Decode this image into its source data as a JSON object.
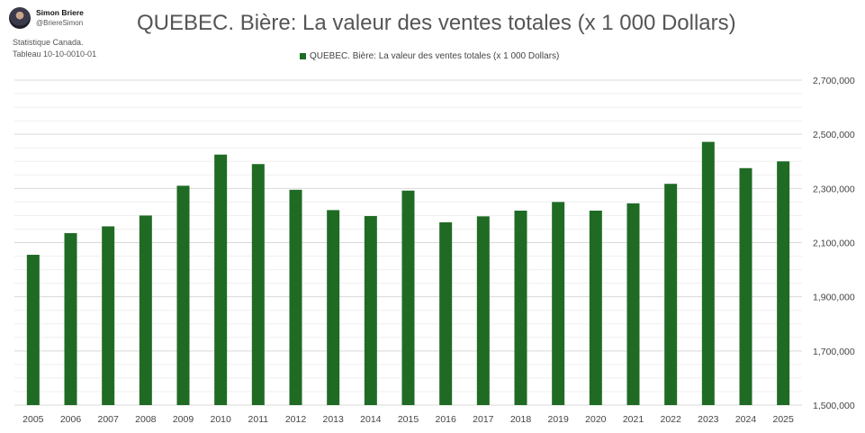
{
  "author": {
    "name": "Simon Briere",
    "handle": "@BriereSimon"
  },
  "source": {
    "line1": "Statistique Canada.",
    "line2": "Tableau 10-10-0010-01"
  },
  "chart_data": {
    "type": "bar",
    "title": "QUEBEC. Bière: La valeur des ventes totales (x 1 000 Dollars)",
    "xlabel": "",
    "ylabel": "",
    "categories": [
      "2005",
      "2006",
      "2007",
      "2008",
      "2009",
      "2010",
      "2011",
      "2012",
      "2013",
      "2014",
      "2015",
      "2016",
      "2017",
      "2018",
      "2019",
      "2020",
      "2021",
      "2022",
      "2023",
      "2024",
      "2025"
    ],
    "series": [
      {
        "name": "QUEBEC. Bière: La valeur des ventes totales (x 1 000 Dollars)",
        "color": "#1f6b24",
        "values": [
          2055000,
          2135000,
          2160000,
          2200000,
          2310000,
          2425000,
          2390000,
          2295000,
          2220000,
          2198000,
          2292000,
          2175000,
          2197000,
          2218000,
          2250000,
          2218000,
          2245000,
          2317000,
          2472000,
          2375000,
          2400000
        ]
      }
    ],
    "ylim": [
      1500000,
      2700000
    ],
    "yticks": [
      1500000,
      1700000,
      1900000,
      2100000,
      2300000,
      2500000,
      2700000
    ],
    "ytick_labels": [
      "1,500,000",
      "1,700,000",
      "1,900,000",
      "2,100,000",
      "2,300,000",
      "2,500,000",
      "2,700,000"
    ],
    "y_axis_side": "right",
    "grid": true,
    "legend_position": "top"
  }
}
